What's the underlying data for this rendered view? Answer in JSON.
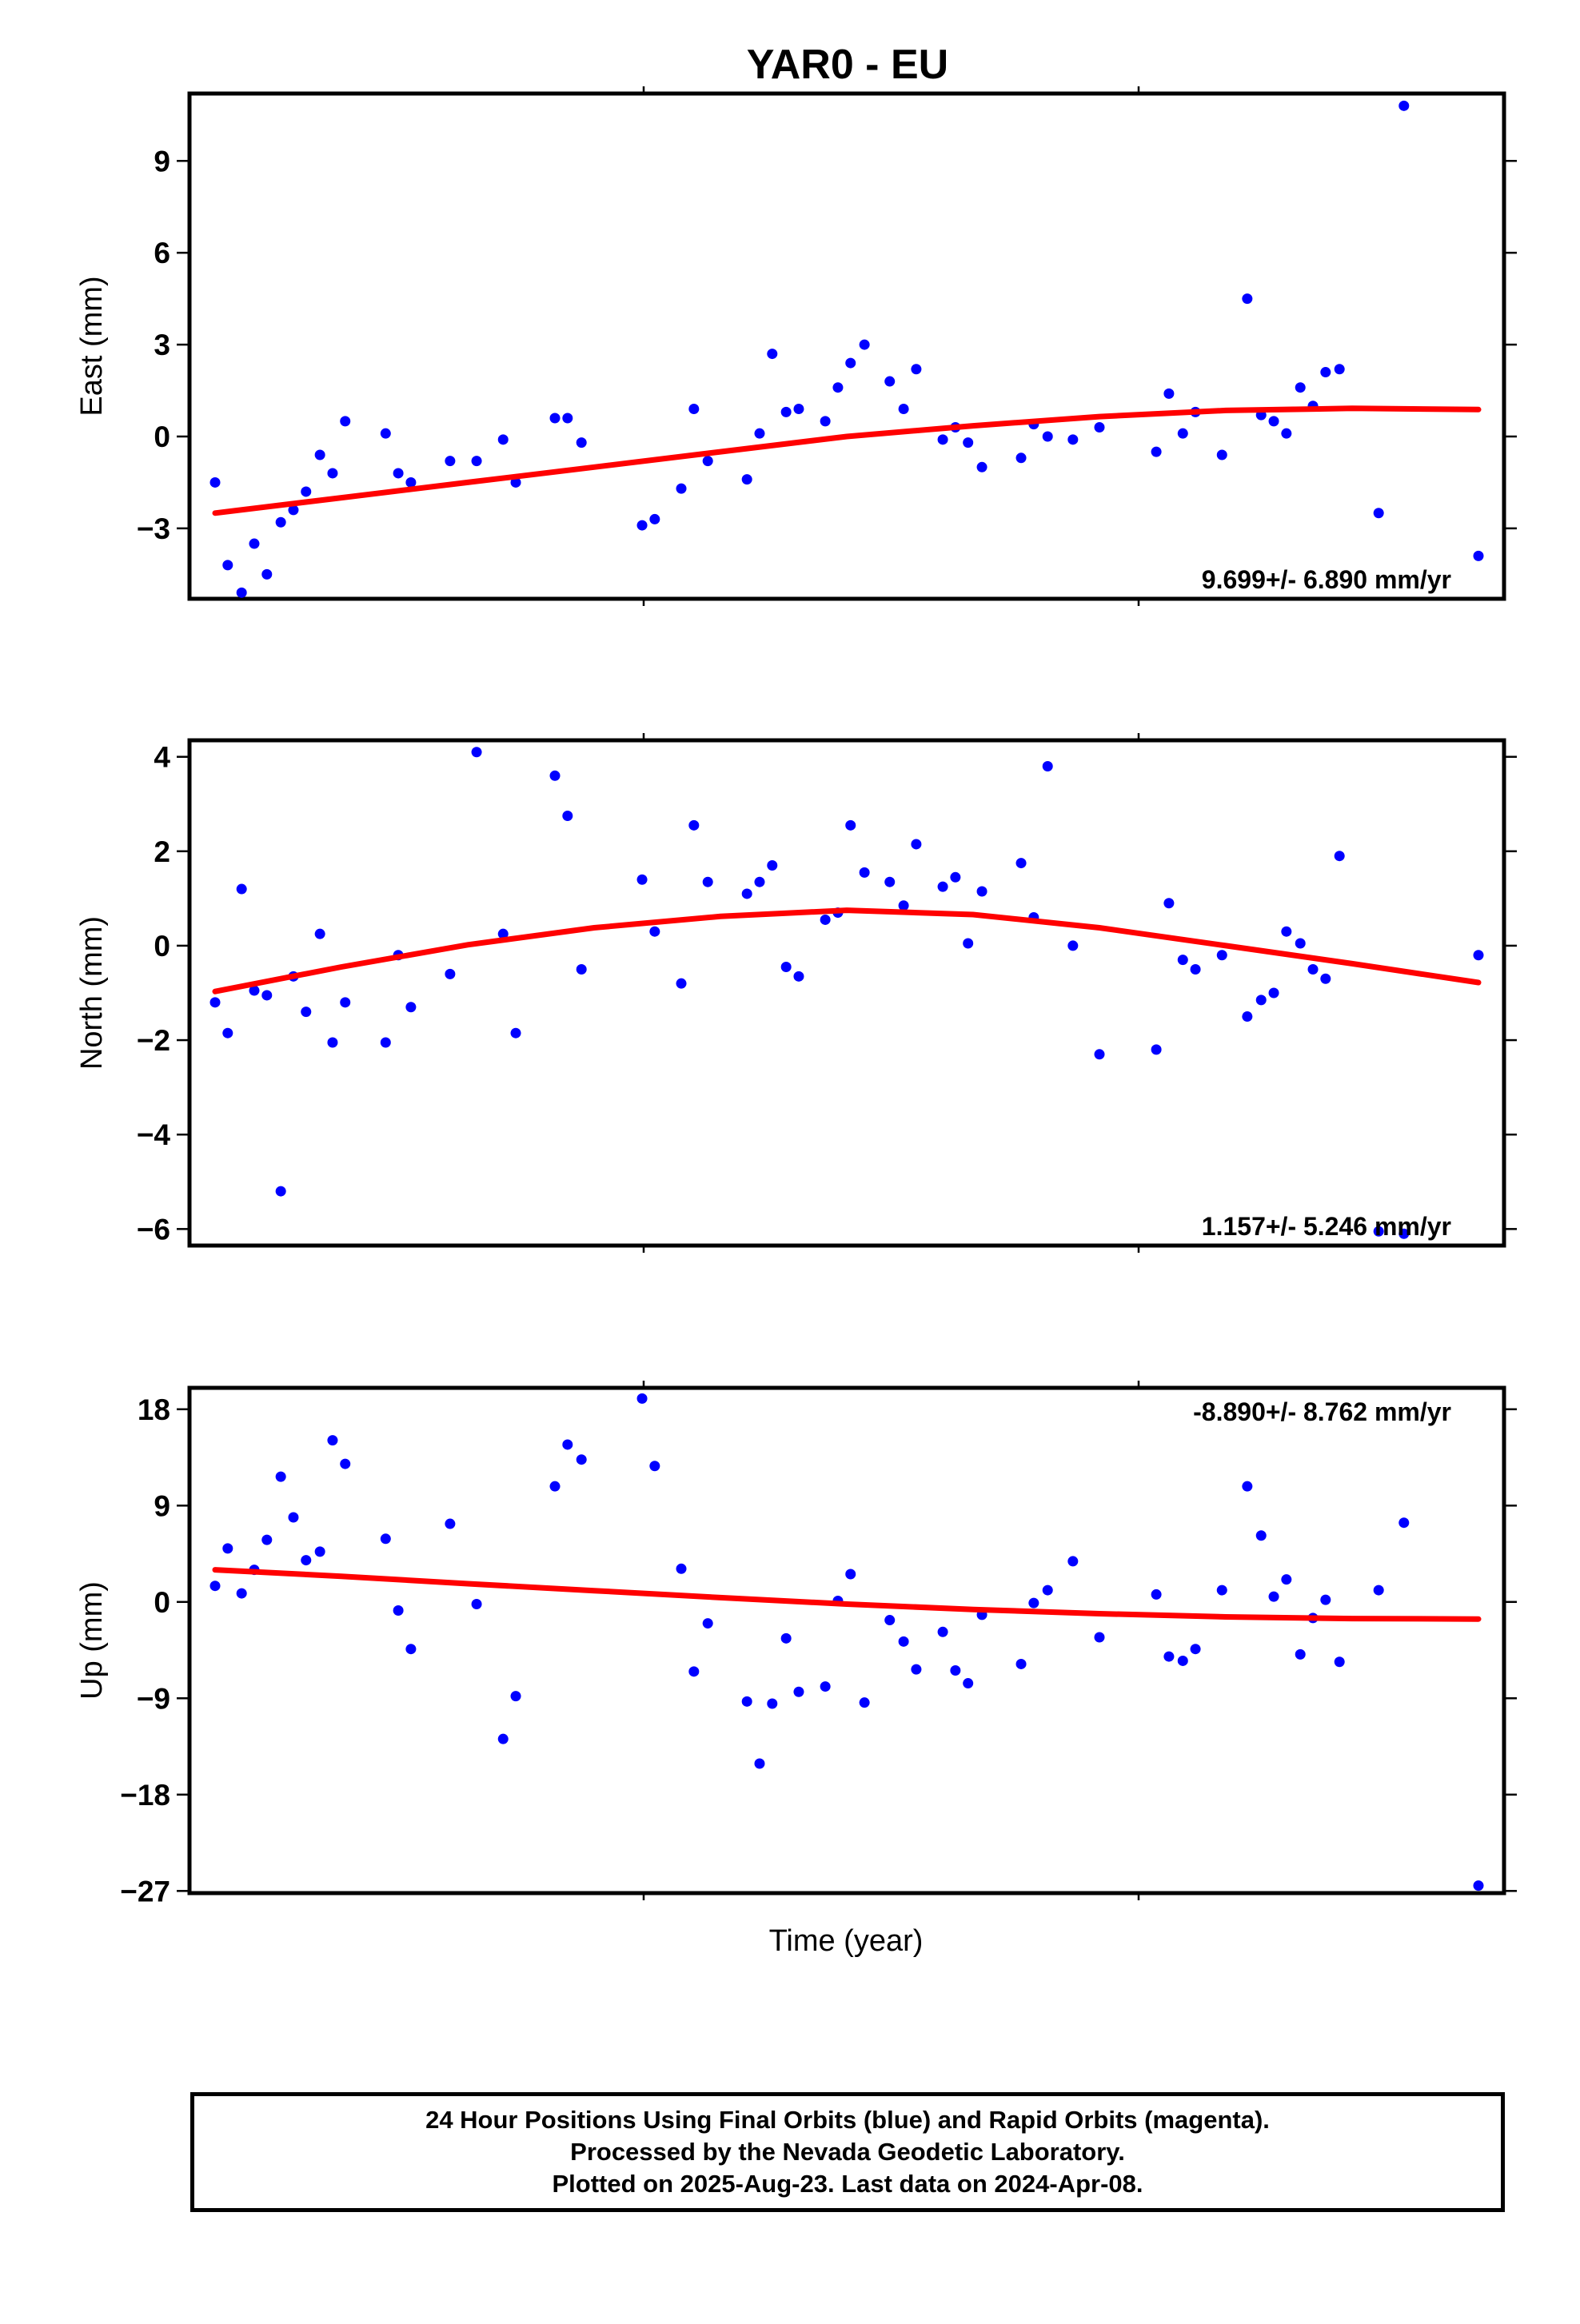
{
  "chart_data": {
    "title": "YAR0 - EU",
    "xlabel": "Time (year)",
    "type": "scatter",
    "panels": [
      {
        "name": "east",
        "ylabel": "East (mm)",
        "ylim": [
          -5.3,
          11.2
        ],
        "yticks": [
          -3,
          0,
          3,
          6,
          9
        ],
        "rate_label": "9.699+/- 6.890 mm/yr",
        "rate_anchor": "bottom",
        "trend": [
          [
            0,
            -2.5
          ],
          [
            0.1,
            -2.0
          ],
          [
            0.2,
            -1.5
          ],
          [
            0.3,
            -1.0
          ],
          [
            0.4,
            -0.5
          ],
          [
            0.5,
            0.0
          ],
          [
            0.6,
            0.35
          ],
          [
            0.7,
            0.65
          ],
          [
            0.8,
            0.85
          ],
          [
            0.9,
            0.92
          ],
          [
            1.0,
            0.88
          ]
        ],
        "points": [
          [
            0.0,
            -1.5
          ],
          [
            0.01,
            -4.2
          ],
          [
            0.021,
            -5.1
          ],
          [
            0.031,
            -3.5
          ],
          [
            0.041,
            -4.5
          ],
          [
            0.052,
            -2.8
          ],
          [
            0.062,
            -2.4
          ],
          [
            0.072,
            -1.8
          ],
          [
            0.083,
            -0.6
          ],
          [
            0.093,
            -1.2
          ],
          [
            0.103,
            0.5
          ],
          [
            0.135,
            0.1
          ],
          [
            0.145,
            -1.2
          ],
          [
            0.155,
            -1.5
          ],
          [
            0.186,
            -0.8
          ],
          [
            0.207,
            -0.8
          ],
          [
            0.228,
            -0.1
          ],
          [
            0.238,
            -1.5
          ],
          [
            0.269,
            0.6
          ],
          [
            0.279,
            0.6
          ],
          [
            0.29,
            -0.2
          ],
          [
            0.338,
            -2.9
          ],
          [
            0.348,
            -2.7
          ],
          [
            0.369,
            -1.7
          ],
          [
            0.379,
            0.9
          ],
          [
            0.39,
            -0.8
          ],
          [
            0.421,
            -1.4
          ],
          [
            0.431,
            0.1
          ],
          [
            0.441,
            2.7
          ],
          [
            0.452,
            0.8
          ],
          [
            0.462,
            0.9
          ],
          [
            0.483,
            0.5
          ],
          [
            0.493,
            1.6
          ],
          [
            0.503,
            2.4
          ],
          [
            0.514,
            3.0
          ],
          [
            0.534,
            1.8
          ],
          [
            0.545,
            0.9
          ],
          [
            0.555,
            2.2
          ],
          [
            0.576,
            -0.1
          ],
          [
            0.586,
            0.3
          ],
          [
            0.596,
            -0.2
          ],
          [
            0.607,
            -1.0
          ],
          [
            0.638,
            -0.7
          ],
          [
            0.648,
            0.4
          ],
          [
            0.659,
            0.0
          ],
          [
            0.679,
            -0.1
          ],
          [
            0.7,
            0.3
          ],
          [
            0.745,
            -0.5
          ],
          [
            0.755,
            1.4
          ],
          [
            0.766,
            0.1
          ],
          [
            0.776,
            0.8
          ],
          [
            0.797,
            -0.6
          ],
          [
            0.817,
            4.5
          ],
          [
            0.828,
            0.7
          ],
          [
            0.838,
            0.5
          ],
          [
            0.848,
            0.1
          ],
          [
            0.859,
            1.6
          ],
          [
            0.869,
            1.0
          ],
          [
            0.879,
            2.1
          ],
          [
            0.89,
            2.2
          ],
          [
            0.921,
            -2.5
          ],
          [
            0.941,
            10.8
          ],
          [
            1.0,
            -3.9
          ]
        ]
      },
      {
        "name": "north",
        "ylabel": "North (mm)",
        "ylim": [
          -6.35,
          4.35
        ],
        "yticks": [
          -6,
          -4,
          -2,
          0,
          2,
          4
        ],
        "rate_label": "1.157+/- 5.246 mm/yr",
        "rate_anchor": "bottom",
        "trend": [
          [
            0,
            -0.97
          ],
          [
            0.1,
            -0.45
          ],
          [
            0.2,
            0.02
          ],
          [
            0.3,
            0.38
          ],
          [
            0.4,
            0.62
          ],
          [
            0.5,
            0.75
          ],
          [
            0.6,
            0.66
          ],
          [
            0.7,
            0.38
          ],
          [
            0.8,
            0.0
          ],
          [
            0.9,
            -0.38
          ],
          [
            1.0,
            -0.78
          ]
        ],
        "points": [
          [
            0.0,
            -1.2
          ],
          [
            0.01,
            -1.85
          ],
          [
            0.021,
            1.2
          ],
          [
            0.031,
            -0.95
          ],
          [
            0.041,
            -1.05
          ],
          [
            0.052,
            -5.2
          ],
          [
            0.062,
            -0.65
          ],
          [
            0.072,
            -1.4
          ],
          [
            0.083,
            0.25
          ],
          [
            0.093,
            -2.05
          ],
          [
            0.103,
            -1.2
          ],
          [
            0.135,
            -2.05
          ],
          [
            0.145,
            -0.2
          ],
          [
            0.155,
            -1.3
          ],
          [
            0.186,
            -0.6
          ],
          [
            0.207,
            4.1
          ],
          [
            0.228,
            0.25
          ],
          [
            0.238,
            -1.85
          ],
          [
            0.269,
            3.6
          ],
          [
            0.279,
            2.75
          ],
          [
            0.29,
            -0.5
          ],
          [
            0.338,
            1.4
          ],
          [
            0.348,
            0.3
          ],
          [
            0.369,
            -0.8
          ],
          [
            0.379,
            2.55
          ],
          [
            0.39,
            1.35
          ],
          [
            0.421,
            1.1
          ],
          [
            0.431,
            1.35
          ],
          [
            0.441,
            1.7
          ],
          [
            0.452,
            -0.45
          ],
          [
            0.462,
            -0.65
          ],
          [
            0.483,
            0.55
          ],
          [
            0.493,
            0.7
          ],
          [
            0.503,
            2.55
          ],
          [
            0.514,
            1.55
          ],
          [
            0.534,
            1.35
          ],
          [
            0.545,
            0.85
          ],
          [
            0.555,
            2.15
          ],
          [
            0.576,
            1.25
          ],
          [
            0.586,
            1.45
          ],
          [
            0.596,
            0.05
          ],
          [
            0.607,
            1.15
          ],
          [
            0.638,
            1.75
          ],
          [
            0.648,
            0.6
          ],
          [
            0.659,
            3.8
          ],
          [
            0.679,
            0.0
          ],
          [
            0.7,
            -2.3
          ],
          [
            0.745,
            -2.2
          ],
          [
            0.755,
            0.9
          ],
          [
            0.766,
            -0.3
          ],
          [
            0.776,
            -0.5
          ],
          [
            0.797,
            -0.2
          ],
          [
            0.817,
            -1.5
          ],
          [
            0.828,
            -1.15
          ],
          [
            0.838,
            -1.0
          ],
          [
            0.848,
            0.3
          ],
          [
            0.859,
            0.05
          ],
          [
            0.869,
            -0.5
          ],
          [
            0.879,
            -0.7
          ],
          [
            0.89,
            1.9
          ],
          [
            0.921,
            -6.05
          ],
          [
            0.941,
            -6.1
          ],
          [
            1.0,
            -0.2
          ]
        ]
      },
      {
        "name": "up",
        "ylabel": "Up (mm)",
        "ylim": [
          -27.2,
          20.0
        ],
        "yticks": [
          -27,
          -18,
          -9,
          0,
          9,
          18
        ],
        "rate_label": "-8.890+/- 8.762 mm/yr",
        "rate_anchor": "top",
        "trend": [
          [
            0,
            3.0
          ],
          [
            0.1,
            2.4
          ],
          [
            0.2,
            1.7
          ],
          [
            0.3,
            1.05
          ],
          [
            0.4,
            0.4
          ],
          [
            0.5,
            -0.2
          ],
          [
            0.6,
            -0.7
          ],
          [
            0.7,
            -1.1
          ],
          [
            0.8,
            -1.4
          ],
          [
            0.9,
            -1.55
          ],
          [
            1.0,
            -1.6
          ]
        ],
        "points": [
          [
            0.0,
            1.5
          ],
          [
            0.01,
            5.0
          ],
          [
            0.021,
            0.8
          ],
          [
            0.031,
            3.0
          ],
          [
            0.041,
            5.8
          ],
          [
            0.052,
            11.7
          ],
          [
            0.062,
            7.9
          ],
          [
            0.072,
            3.9
          ],
          [
            0.083,
            4.7
          ],
          [
            0.093,
            15.1
          ],
          [
            0.103,
            12.9
          ],
          [
            0.135,
            5.9
          ],
          [
            0.145,
            -0.8
          ],
          [
            0.155,
            -4.4
          ],
          [
            0.186,
            7.3
          ],
          [
            0.207,
            -0.2
          ],
          [
            0.228,
            -12.8
          ],
          [
            0.238,
            -8.8
          ],
          [
            0.269,
            10.8
          ],
          [
            0.279,
            14.7
          ],
          [
            0.29,
            13.3
          ],
          [
            0.338,
            19.0
          ],
          [
            0.348,
            12.7
          ],
          [
            0.369,
            3.1
          ],
          [
            0.379,
            -6.5
          ],
          [
            0.39,
            -2.0
          ],
          [
            0.421,
            -9.3
          ],
          [
            0.431,
            -15.1
          ],
          [
            0.441,
            -9.5
          ],
          [
            0.452,
            -3.4
          ],
          [
            0.462,
            -8.4
          ],
          [
            0.483,
            -7.9
          ],
          [
            0.493,
            0.1
          ],
          [
            0.503,
            2.6
          ],
          [
            0.514,
            -9.4
          ],
          [
            0.534,
            -1.7
          ],
          [
            0.545,
            -3.7
          ],
          [
            0.555,
            -6.3
          ],
          [
            0.576,
            -2.8
          ],
          [
            0.586,
            -6.4
          ],
          [
            0.596,
            -7.6
          ],
          [
            0.607,
            -1.2
          ],
          [
            0.638,
            -5.8
          ],
          [
            0.648,
            -0.1
          ],
          [
            0.659,
            1.1
          ],
          [
            0.679,
            3.8
          ],
          [
            0.7,
            -3.3
          ],
          [
            0.745,
            0.7
          ],
          [
            0.755,
            -5.1
          ],
          [
            0.766,
            -5.5
          ],
          [
            0.776,
            -4.4
          ],
          [
            0.797,
            1.1
          ],
          [
            0.817,
            10.8
          ],
          [
            0.828,
            6.2
          ],
          [
            0.838,
            0.5
          ],
          [
            0.848,
            2.1
          ],
          [
            0.859,
            -4.9
          ],
          [
            0.869,
            -1.5
          ],
          [
            0.879,
            0.2
          ],
          [
            0.89,
            -5.6
          ],
          [
            0.921,
            1.1
          ],
          [
            0.941,
            7.4
          ],
          [
            1.0,
            -26.5
          ]
        ]
      }
    ],
    "colors": {
      "points": "#0000ff",
      "trend": "#ff0000",
      "axes": "#000000"
    },
    "footer": {
      "line1": "24 Hour Positions Using Final Orbits (blue) and Rapid Orbits (magenta).",
      "line2": "Processed by the Nevada Geodetic Laboratory.",
      "line3": "Plotted on 2025-Aug-23. Last data on 2024-Apr-08."
    }
  }
}
